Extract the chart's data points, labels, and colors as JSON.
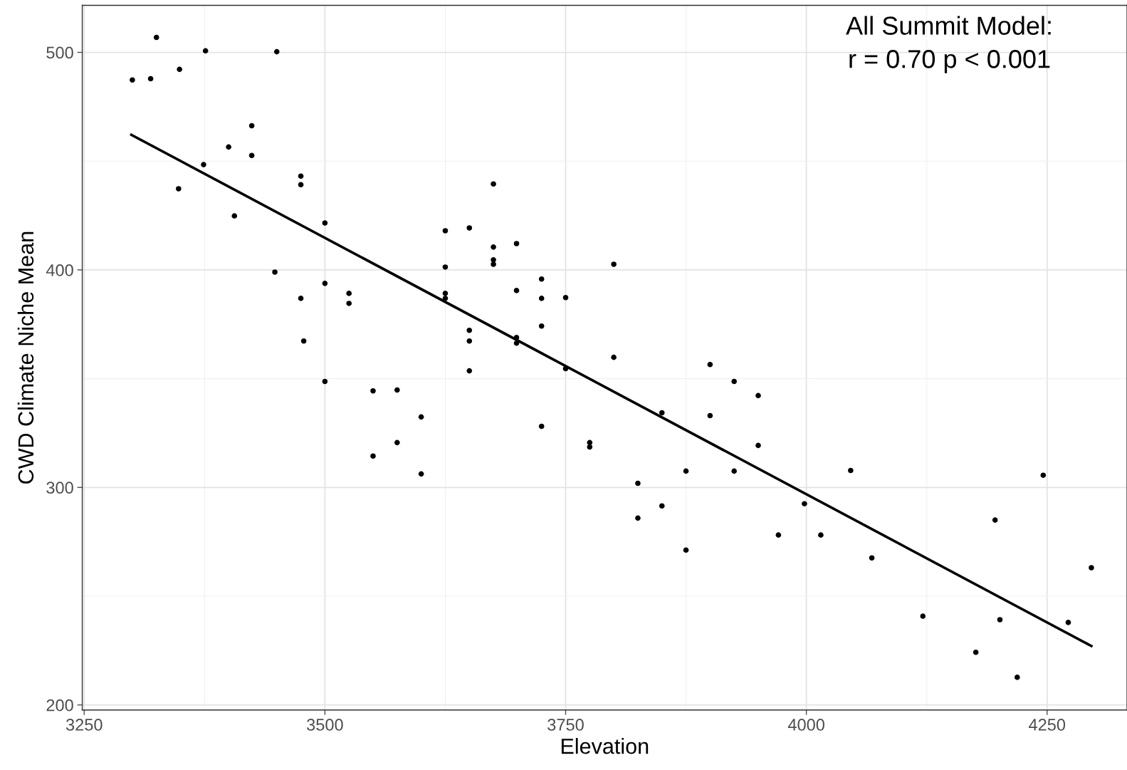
{
  "chart_data": {
    "type": "scatter",
    "xlabel": "Elevation",
    "ylabel": "CWD Climate Niche Mean",
    "annotations": [
      "All Summit Model:\nr = 0.70 p < 0.001"
    ],
    "xlim": [
      3248,
      4333
    ],
    "ylim": [
      197.7,
      521.6
    ],
    "xticks": [
      3250,
      3500,
      3750,
      4000,
      4250
    ],
    "yticks": [
      200,
      300,
      400,
      500
    ],
    "grid": true,
    "series": [
      {
        "color": "#000000",
        "marker": "circle",
        "x": [
          3300,
          3319,
          3325,
          3349,
          3348,
          3376,
          3374,
          3400,
          3406,
          3424,
          3424,
          3450,
          3448,
          3475,
          3475,
          3475,
          3478,
          3500,
          3500,
          3500,
          3525,
          3525,
          3550,
          3550,
          3575,
          3575,
          3600,
          3600,
          3625,
          3625,
          3625,
          3625,
          3650,
          3650,
          3650,
          3650,
          3675,
          3675,
          3675,
          3675,
          3699,
          3699,
          3699,
          3699,
          3725,
          3725,
          3725,
          3725,
          3750,
          3750,
          3775,
          3775,
          3800,
          3800,
          3825,
          3825,
          3850,
          3850,
          3875,
          3875,
          3900,
          3900,
          3925,
          3925,
          3950,
          3950,
          3971,
          3998,
          4015,
          4046,
          4068,
          4121,
          4176,
          4196,
          4201,
          4219,
          4246,
          4272,
          4296
        ],
        "values": [
          487.3,
          487.9,
          506.9,
          492.2,
          437.3,
          500.7,
          448.4,
          456.5,
          424.8,
          466.3,
          452.6,
          500.3,
          399.0,
          443.1,
          439.2,
          386.9,
          367.3,
          421.6,
          393.8,
          348.7,
          389.2,
          384.6,
          344.4,
          314.4,
          344.8,
          320.6,
          332.4,
          306.2,
          418.0,
          401.3,
          389.2,
          386.9,
          419.3,
          372.2,
          367.3,
          353.6,
          439.5,
          410.5,
          404.6,
          402.6,
          412.1,
          390.5,
          368.9,
          366.3,
          395.8,
          386.9,
          374.2,
          328.1,
          387.3,
          354.6,
          320.6,
          318.6,
          402.6,
          359.8,
          301.9,
          285.9,
          334.3,
          291.5,
          307.5,
          271.2,
          356.5,
          333.0,
          348.7,
          307.5,
          342.2,
          319.3,
          278.1,
          292.5,
          278.1,
          307.8,
          267.6,
          240.8,
          224.2,
          285.0,
          239.2,
          212.7,
          305.6,
          237.9,
          263.1
        ]
      },
      {
        "type": "line",
        "color": "#000000",
        "x": [
          3299,
          4296
        ],
        "values": [
          462.1,
          227.1
        ]
      }
    ]
  }
}
